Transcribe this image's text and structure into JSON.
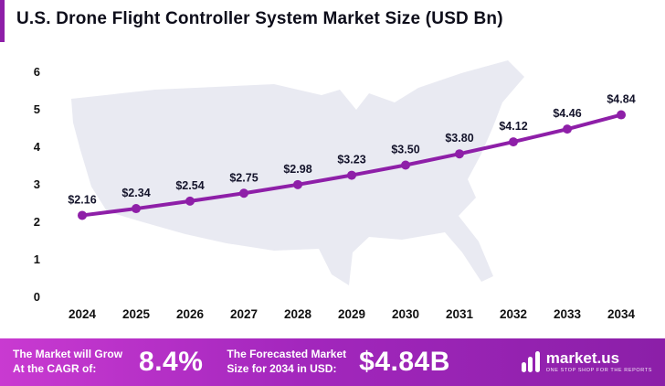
{
  "header": {
    "title": "U.S. Drone Flight Controller System Market Size (USD Bn)"
  },
  "chart_data": {
    "type": "line",
    "title": "U.S. Drone Flight Controller System Market Size (USD Bn)",
    "categories": [
      "2024",
      "2025",
      "2026",
      "2027",
      "2028",
      "2029",
      "2030",
      "2031",
      "2032",
      "2033",
      "2034"
    ],
    "values": [
      2.16,
      2.34,
      2.54,
      2.75,
      2.98,
      3.23,
      3.5,
      3.8,
      4.12,
      4.46,
      4.84
    ],
    "label_prefix": "$",
    "xlabel": "",
    "ylabel": "",
    "ylim": [
      0,
      6
    ],
    "yticks": [
      0,
      1,
      2,
      3,
      4,
      5,
      6
    ],
    "grid": false,
    "legend": "none",
    "line_color": "#8e1fa8",
    "marker_color": "#8e1fa8",
    "label_color": "#14142b",
    "axis_label_color": "#111111",
    "map_background_color": "#e9eaf2"
  },
  "footer": {
    "cagr_label_line1": "The Market will Grow",
    "cagr_label_line2": "At the CAGR of:",
    "cagr_value": "8.4%",
    "forecast_label_line1": "The Forecasted Market",
    "forecast_label_line2": "Size for 2034 in USD:",
    "forecast_value": "$4.84B",
    "brand_name": "market.us",
    "brand_tagline": "ONE STOP SHOP FOR THE REPORTS"
  }
}
